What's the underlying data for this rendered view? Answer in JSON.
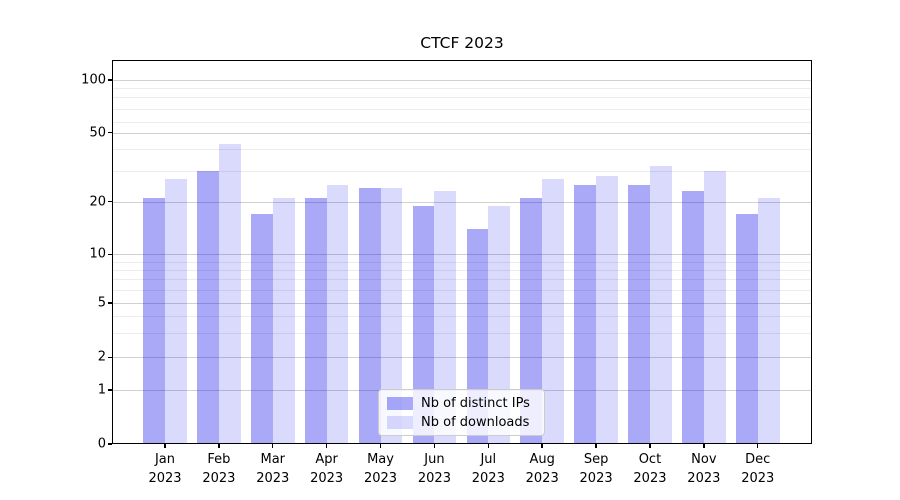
{
  "chart_data": {
    "type": "bar",
    "title": "CTCF 2023",
    "categories": [
      "Jan 2023",
      "Feb 2023",
      "Mar 2023",
      "Apr 2023",
      "May 2023",
      "Jun 2023",
      "Jul 2023",
      "Aug 2023",
      "Sep 2023",
      "Oct 2023",
      "Nov 2023",
      "Dec 2023"
    ],
    "series": [
      {
        "name": "Nb of distinct IPs",
        "color": "#0808eb",
        "alpha": 0.35,
        "blended_hex": "#a8a8f8",
        "values": [
          21,
          30,
          17,
          21,
          24,
          19,
          14,
          21,
          25,
          25,
          23,
          17
        ]
      },
      {
        "name": "Nb of downloads",
        "color": "#0808eb",
        "alpha": 0.15,
        "blended_hex": "#dadafc",
        "values": [
          27,
          43,
          21,
          25,
          24,
          23,
          19,
          27,
          28,
          32,
          30,
          21
        ]
      }
    ],
    "xlabel": "",
    "ylabel": "",
    "yscale": "symlog",
    "ylim": [
      0,
      120
    ],
    "ytick_values": [
      100,
      50,
      20,
      10,
      5,
      2,
      1,
      0
    ],
    "ytick_labels": [
      "100",
      "50",
      "20",
      "10",
      "5",
      "2",
      "1",
      "0"
    ],
    "minor_gridline_values": [
      90,
      80,
      70,
      60,
      40,
      30,
      9,
      8,
      7,
      6,
      4,
      3
    ],
    "grid": "horizontal major+minor",
    "legend_position": "lower center",
    "grid_major_color": "#d0d0d0",
    "grid_minor_color": "#ececec"
  }
}
